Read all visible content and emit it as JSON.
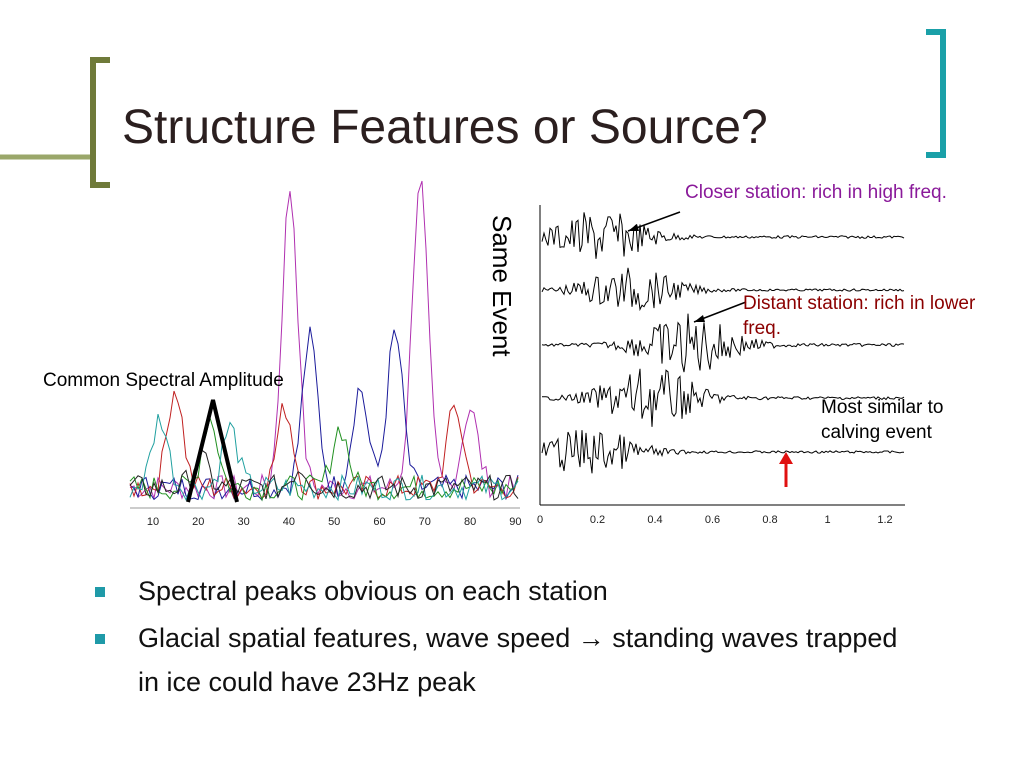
{
  "title": "Structure Features or Source?",
  "spectrum_plot": {
    "annotation": "Common Spectral Amplitude",
    "xticks": [
      "10",
      "20",
      "30",
      "40",
      "50",
      "60",
      "70",
      "80",
      "90"
    ]
  },
  "seismogram_plot": {
    "side_label": "Same Event",
    "xticks": [
      "0",
      "0.2",
      "0.4",
      "0.6",
      "0.8",
      "1",
      "1.2"
    ],
    "annotations": [
      "Closer station: rich in high freq.",
      "Distant station: rich in lower freq.",
      "Most similar to calving event"
    ]
  },
  "bullets": [
    "Spectral peaks obvious on each station",
    "Glacial spatial features, wave speed → standing waves trapped in ice could have 23Hz peak"
  ]
}
